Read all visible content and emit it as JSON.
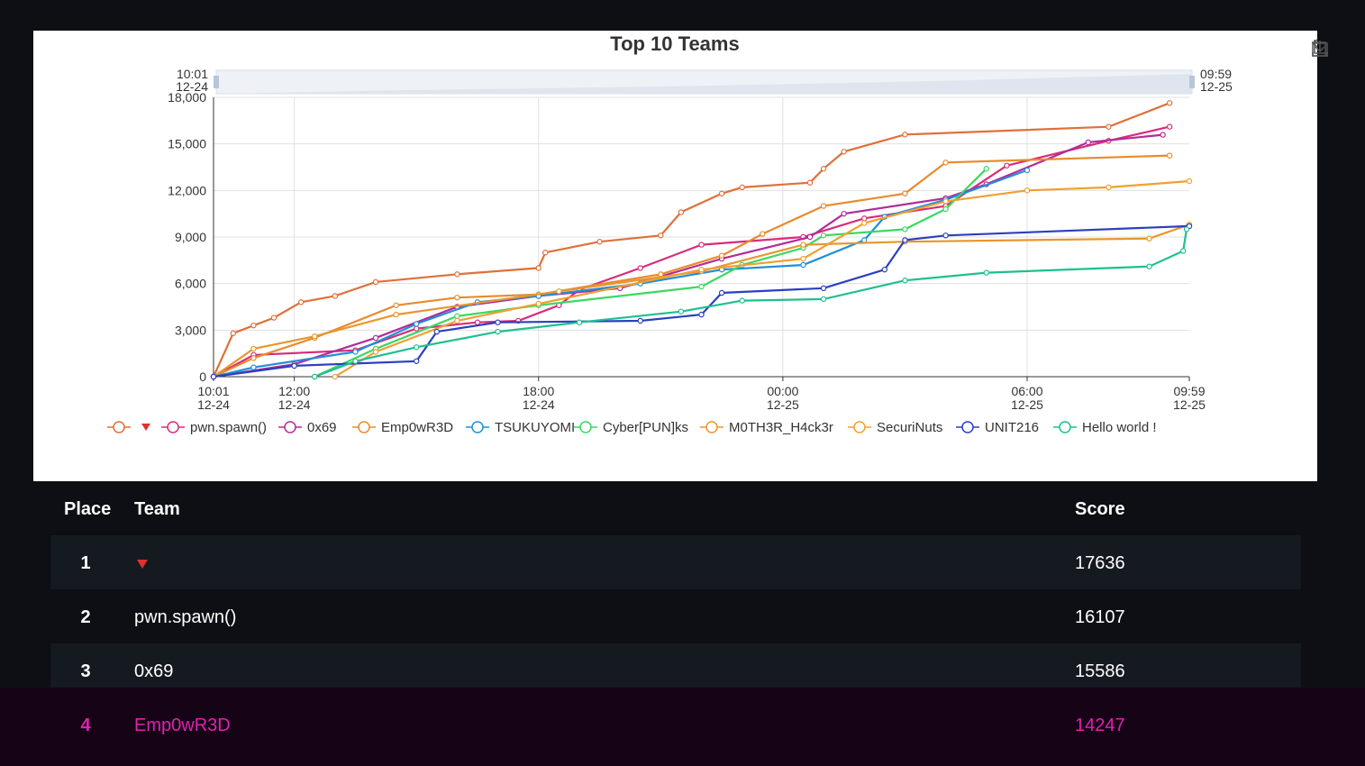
{
  "chart_data": {
    "type": "line",
    "title": "Top 10 Teams",
    "x_ticks": [
      {
        "time": "10:01",
        "date": "12-24"
      },
      {
        "time": "12:00",
        "date": "12-24"
      },
      {
        "time": "18:00",
        "date": "12-24"
      },
      {
        "time": "00:00",
        "date": "12-25"
      },
      {
        "time": "06:00",
        "date": "12-25"
      },
      {
        "time": "09:59",
        "date": "12-25"
      }
    ],
    "y_ticks": [
      "0",
      "3,000",
      "6,000",
      "9,000",
      "12,000",
      "15,000",
      "18,000"
    ],
    "ylim": [
      0,
      18000
    ],
    "xlim": [
      "12-24 10:01",
      "12-25 09:59"
    ],
    "zoom_start": {
      "time": "10:01",
      "date": "12-24"
    },
    "zoom_end": {
      "time": "09:59",
      "date": "12-25"
    },
    "grid": true,
    "legend_position": "bottom",
    "series": [
      {
        "name": "▾",
        "color": "#e0703a",
        "points": [
          [
            "12-24 10:01",
            0
          ],
          [
            "12-24 10:30",
            2800
          ],
          [
            "12-24 11:00",
            3300
          ],
          [
            "12-24 11:30",
            3800
          ],
          [
            "12-24 12:10",
            4800
          ],
          [
            "12-24 13:00",
            5200
          ],
          [
            "12-24 14:00",
            6100
          ],
          [
            "12-24 16:00",
            6600
          ],
          [
            "12-24 18:00",
            7000
          ],
          [
            "12-24 18:10",
            8000
          ],
          [
            "12-24 19:30",
            8700
          ],
          [
            "12-24 21:00",
            9100
          ],
          [
            "12-24 21:30",
            10600
          ],
          [
            "12-24 22:30",
            11800
          ],
          [
            "12-24 23:00",
            12200
          ],
          [
            "12-25 00:40",
            12500
          ],
          [
            "12-25 01:00",
            13400
          ],
          [
            "12-25 01:30",
            14500
          ],
          [
            "12-25 03:00",
            15600
          ],
          [
            "12-25 08:00",
            16100
          ],
          [
            "12-25 09:30",
            17636
          ]
        ]
      },
      {
        "name": "pwn.spawn()",
        "color": "#d82c7a",
        "points": [
          [
            "12-24 10:01",
            0
          ],
          [
            "12-24 11:00",
            1400
          ],
          [
            "12-24 13:30",
            1700
          ],
          [
            "12-24 15:00",
            3100
          ],
          [
            "12-24 16:30",
            3500
          ],
          [
            "12-24 17:30",
            3600
          ],
          [
            "12-24 18:30",
            4600
          ],
          [
            "12-24 19:00",
            5600
          ],
          [
            "12-24 20:30",
            7000
          ],
          [
            "12-24 22:00",
            8500
          ],
          [
            "12-25 00:30",
            9000
          ],
          [
            "12-25 02:00",
            10200
          ],
          [
            "12-25 04:00",
            11000
          ],
          [
            "12-25 05:30",
            13600
          ],
          [
            "12-25 08:00",
            15200
          ],
          [
            "12-25 09:30",
            16107
          ]
        ]
      },
      {
        "name": "0x69",
        "color": "#b32a9a",
        "points": [
          [
            "12-24 10:01",
            0
          ],
          [
            "12-24 12:00",
            800
          ],
          [
            "12-24 14:00",
            2500
          ],
          [
            "12-24 16:00",
            4500
          ],
          [
            "12-24 18:00",
            5200
          ],
          [
            "12-24 20:00",
            5700
          ],
          [
            "12-24 22:30",
            7600
          ],
          [
            "12-25 00:40",
            9000
          ],
          [
            "12-25 01:30",
            10500
          ],
          [
            "12-25 04:00",
            11500
          ],
          [
            "12-25 05:00",
            12400
          ],
          [
            "12-25 07:30",
            15100
          ],
          [
            "12-25 09:20",
            15586
          ]
        ]
      },
      {
        "name": "Emp0wR3D",
        "color": "#e88b2e",
        "points": [
          [
            "12-24 10:01",
            0
          ],
          [
            "12-24 11:00",
            1200
          ],
          [
            "12-24 12:30",
            2500
          ],
          [
            "12-24 14:30",
            4600
          ],
          [
            "12-24 16:00",
            5100
          ],
          [
            "12-24 18:00",
            5300
          ],
          [
            "12-24 21:00",
            6600
          ],
          [
            "12-24 22:30",
            7800
          ],
          [
            "12-24 23:30",
            9200
          ],
          [
            "12-25 01:00",
            11000
          ],
          [
            "12-25 03:00",
            11800
          ],
          [
            "12-25 04:00",
            13800
          ],
          [
            "12-25 09:30",
            14247
          ]
        ]
      },
      {
        "name": "TSUKUYOMI",
        "color": "#1f8fd8",
        "points": [
          [
            "12-24 10:01",
            0
          ],
          [
            "12-24 11:00",
            600
          ],
          [
            "12-24 13:30",
            1600
          ],
          [
            "12-24 15:00",
            3400
          ],
          [
            "12-24 16:30",
            4800
          ],
          [
            "12-24 18:00",
            5200
          ],
          [
            "12-24 20:30",
            6000
          ],
          [
            "12-24 22:30",
            6900
          ],
          [
            "12-25 00:30",
            7200
          ],
          [
            "12-25 02:00",
            8800
          ],
          [
            "12-25 02:30",
            10300
          ],
          [
            "12-25 04:00",
            11400
          ],
          [
            "12-25 06:00",
            13300
          ]
        ]
      },
      {
        "name": "Cyber[PUN]ks",
        "color": "#3ad860",
        "points": [
          [
            "12-24 12:30",
            0
          ],
          [
            "12-24 14:00",
            1800
          ],
          [
            "12-24 16:00",
            3900
          ],
          [
            "12-24 18:00",
            4600
          ],
          [
            "12-24 22:00",
            5800
          ],
          [
            "12-24 23:00",
            7200
          ],
          [
            "12-25 00:30",
            8300
          ],
          [
            "12-25 01:00",
            9100
          ],
          [
            "12-25 03:00",
            9500
          ],
          [
            "12-25 04:00",
            10800
          ],
          [
            "12-25 05:00",
            13400
          ]
        ]
      },
      {
        "name": "M0TH3R_H4ck3r",
        "color": "#e8962e",
        "points": [
          [
            "12-24 10:01",
            0
          ],
          [
            "12-24 11:00",
            1800
          ],
          [
            "12-24 12:30",
            2600
          ],
          [
            "12-24 14:30",
            4000
          ],
          [
            "12-24 18:30",
            5500
          ],
          [
            "12-24 22:00",
            6800
          ],
          [
            "12-25 00:30",
            8500
          ],
          [
            "12-25 03:00",
            8700
          ],
          [
            "12-25 09:00",
            8900
          ],
          [
            "12-25 09:59",
            9800
          ]
        ]
      },
      {
        "name": "SecuriNuts",
        "color": "#f0a030",
        "points": [
          [
            "12-24 13:00",
            0
          ],
          [
            "12-24 14:00",
            1600
          ],
          [
            "12-24 16:00",
            3600
          ],
          [
            "12-24 18:00",
            4700
          ],
          [
            "12-24 22:00",
            6900
          ],
          [
            "12-25 00:30",
            7600
          ],
          [
            "12-25 02:00",
            9900
          ],
          [
            "12-25 04:00",
            11300
          ],
          [
            "12-25 06:00",
            12000
          ],
          [
            "12-25 08:00",
            12200
          ],
          [
            "12-25 09:59",
            12600
          ]
        ]
      },
      {
        "name": "UNIT216",
        "color": "#2a3fc0",
        "points": [
          [
            "12-24 10:01",
            0
          ],
          [
            "12-24 12:00",
            700
          ],
          [
            "12-24 15:00",
            1000
          ],
          [
            "12-24 15:30",
            2900
          ],
          [
            "12-24 17:00",
            3500
          ],
          [
            "12-24 20:30",
            3600
          ],
          [
            "12-24 22:00",
            4000
          ],
          [
            "12-24 22:30",
            5400
          ],
          [
            "12-25 01:00",
            5700
          ],
          [
            "12-25 02:30",
            6900
          ],
          [
            "12-25 03:00",
            8800
          ],
          [
            "12-25 04:00",
            9100
          ],
          [
            "12-25 09:59",
            9700
          ]
        ]
      },
      {
        "name": "Hello world !",
        "color": "#1fbf90",
        "points": [
          [
            "12-24 12:30",
            0
          ],
          [
            "12-24 13:30",
            1000
          ],
          [
            "12-24 15:00",
            1900
          ],
          [
            "12-24 17:00",
            2900
          ],
          [
            "12-24 19:00",
            3500
          ],
          [
            "12-24 21:30",
            4200
          ],
          [
            "12-24 23:00",
            4900
          ],
          [
            "12-25 01:00",
            5000
          ],
          [
            "12-25 03:00",
            6200
          ],
          [
            "12-25 05:00",
            6700
          ],
          [
            "12-25 09:00",
            7100
          ],
          [
            "12-25 09:50",
            8100
          ],
          [
            "12-25 09:55",
            9500
          ]
        ]
      }
    ]
  },
  "table": {
    "headers": {
      "place": "Place",
      "team": "Team",
      "score": "Score"
    },
    "rows": [
      {
        "place": "1",
        "team": "",
        "team_icon": "red-down-triangle",
        "score": "17636"
      },
      {
        "place": "2",
        "team": "pwn.spawn()",
        "score": "16107"
      },
      {
        "place": "3",
        "team": "0x69",
        "score": "15586"
      },
      {
        "place": "4",
        "team": "Emp0wR3D",
        "score": "14247",
        "highlight_color": "#e020b0"
      }
    ]
  },
  "toolbar": {
    "icons": [
      "zoom-select-icon",
      "zoom-reset-icon",
      "download-icon"
    ]
  }
}
